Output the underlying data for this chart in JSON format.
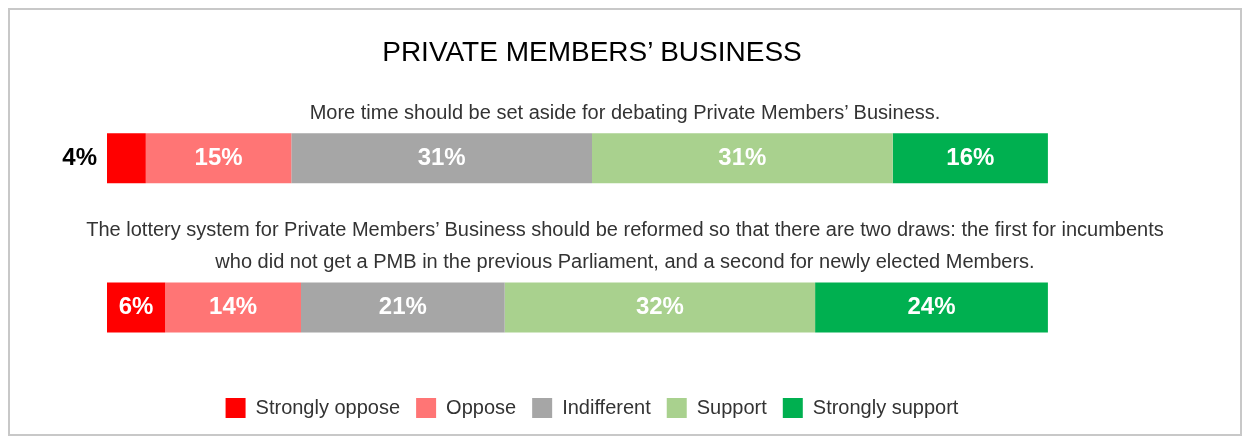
{
  "chart_data": {
    "type": "bar",
    "orientation": "horizontal",
    "stacked": true,
    "title": "PRIVATE MEMBERS’ BUSINESS",
    "categories": [
      "More time should be set aside for debating Private Members’ Business.",
      "The lottery system for Private Members’ Business should be reformed so that there are two draws: the first for incumbents who did not get a PMB in the previous Parliament, and a second for newly elected Members."
    ],
    "series": [
      {
        "name": "Strongly oppose",
        "color": "#ff0000",
        "values": [
          4,
          6
        ],
        "value_labels": [
          "4%",
          "6%"
        ]
      },
      {
        "name": "Oppose",
        "color": "#ff7575",
        "values": [
          15,
          14
        ],
        "value_labels": [
          "15%",
          "14%"
        ]
      },
      {
        "name": "Indifferent",
        "color": "#a6a6a6",
        "values": [
          31,
          21
        ],
        "value_labels": [
          "31%",
          "21%"
        ]
      },
      {
        "name": "Support",
        "color": "#a9d18e",
        "values": [
          31,
          32
        ],
        "value_labels": [
          "31%",
          "32%"
        ]
      },
      {
        "name": "Strongly support",
        "color": "#00b050",
        "values": [
          16,
          24
        ],
        "value_labels": [
          "16%",
          "24%"
        ]
      }
    ],
    "legend": "bottom"
  }
}
